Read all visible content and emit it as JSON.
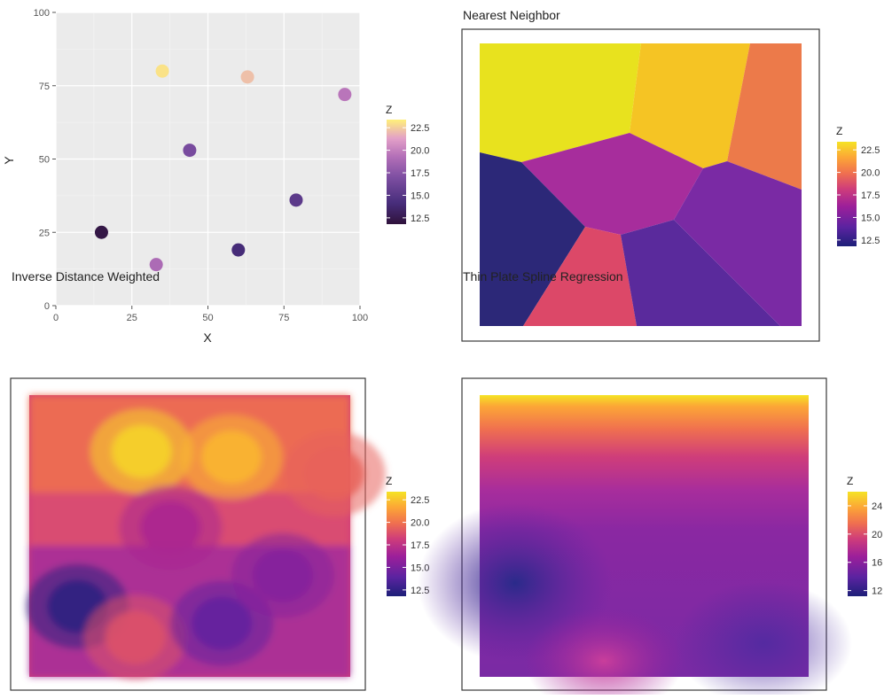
{
  "colors": {
    "viridis": [
      "#30123b",
      "#472d7b",
      "#7e4fa2",
      "#b470b8",
      "#e3a0c8",
      "#fff07a"
    ],
    "plasma_stops": [
      "#1d1f78",
      "#5a23a0",
      "#9c1f9a",
      "#cf3d7a",
      "#f0704f",
      "#fca636",
      "#f5e324"
    ],
    "panel_bg": "#ebebeb",
    "frame": "#3a3a3a"
  },
  "chart_data": [
    {
      "type": "scatter",
      "title": "",
      "xlabel": "X",
      "ylabel": "Y",
      "xlim": [
        0,
        100
      ],
      "ylim": [
        0,
        100
      ],
      "x_ticks": [
        "0",
        "25",
        "50",
        "75",
        "100"
      ],
      "y_ticks": [
        "0",
        "25",
        "50",
        "75",
        "100"
      ],
      "grid": true,
      "legend": {
        "title": "Z",
        "position": "right",
        "ticks": [
          "22.5",
          "20.0",
          "17.5",
          "15.0",
          "12.5"
        ],
        "range": [
          11.8,
          23.4
        ]
      },
      "points": [
        {
          "x": 15,
          "y": 25,
          "z": 12.2
        },
        {
          "x": 33,
          "y": 14,
          "z": 18.4
        },
        {
          "x": 35,
          "y": 80,
          "z": 23.0
        },
        {
          "x": 44,
          "y": 53,
          "z": 16.2
        },
        {
          "x": 60,
          "y": 19,
          "z": 14.0
        },
        {
          "x": 63,
          "y": 78,
          "z": 22.0
        },
        {
          "x": 79,
          "y": 36,
          "z": 15.0
        },
        {
          "x": 95,
          "y": 72,
          "z": 19.0
        }
      ]
    },
    {
      "type": "heatmap",
      "method": "nearest",
      "title": "Nearest Neighbor",
      "legend": {
        "title": "Z",
        "position": "right",
        "ticks": [
          "22.5",
          "20.0",
          "17.5",
          "15.0",
          "12.5"
        ],
        "range": [
          11.8,
          23.4
        ]
      }
    },
    {
      "type": "heatmap",
      "method": "idw",
      "title": "Inverse Distance Weighted",
      "legend": {
        "title": "Z",
        "position": "right",
        "ticks": [
          "22.5",
          "20.0",
          "17.5",
          "15.0",
          "12.5"
        ],
        "range": [
          11.8,
          23.4
        ]
      }
    },
    {
      "type": "heatmap",
      "method": "tps",
      "title": "Thin Plate Spline Regression",
      "legend": {
        "title": "Z",
        "position": "right",
        "ticks": [
          "24",
          "20",
          "16",
          "12"
        ],
        "range": [
          11.2,
          26.0
        ]
      }
    }
  ]
}
